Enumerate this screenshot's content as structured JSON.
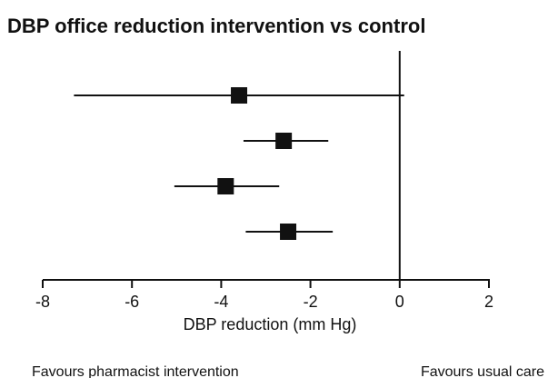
{
  "chart_data": {
    "type": "forest",
    "title": "DBP office reduction intervention vs  control",
    "xlabel": "DBP reduction (mm Hg)",
    "xlim": [
      -8,
      2
    ],
    "xticks": [
      -8,
      -6,
      -4,
      -2,
      0,
      2
    ],
    "xtick_labels": [
      "-8",
      "-6",
      "-4",
      "-2",
      "0",
      "2"
    ],
    "reference_line": 0,
    "rows": [
      {
        "estimate": -3.6,
        "lower": -7.3,
        "upper": 0.1
      },
      {
        "estimate": -2.6,
        "lower": -3.5,
        "upper": -1.6
      },
      {
        "estimate": -3.9,
        "lower": -5.05,
        "upper": -2.7
      },
      {
        "estimate": -2.5,
        "lower": -3.45,
        "upper": -1.5
      }
    ],
    "left_annotation": "Favours pharmacist intervention",
    "right_annotation": "Favours usual care",
    "marker_color": "#111111",
    "line_color": "#111111"
  }
}
